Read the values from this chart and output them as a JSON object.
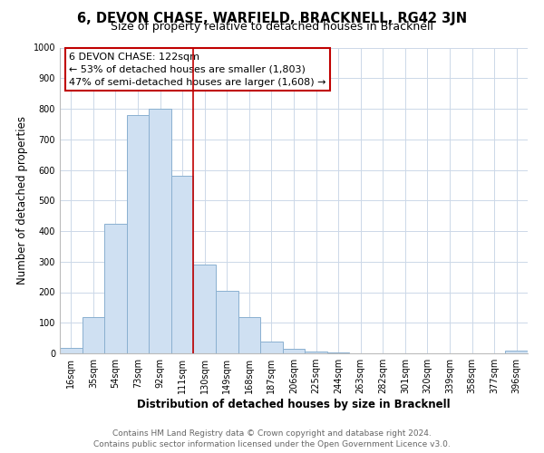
{
  "title": "6, DEVON CHASE, WARFIELD, BRACKNELL, RG42 3JN",
  "subtitle": "Size of property relative to detached houses in Bracknell",
  "xlabel": "Distribution of detached houses by size in Bracknell",
  "ylabel": "Number of detached properties",
  "bar_labels": [
    "16sqm",
    "35sqm",
    "54sqm",
    "73sqm",
    "92sqm",
    "111sqm",
    "130sqm",
    "149sqm",
    "168sqm",
    "187sqm",
    "206sqm",
    "225sqm",
    "244sqm",
    "263sqm",
    "282sqm",
    "301sqm",
    "320sqm",
    "339sqm",
    "358sqm",
    "377sqm",
    "396sqm"
  ],
  "bar_values": [
    18,
    120,
    425,
    780,
    800,
    580,
    290,
    205,
    120,
    40,
    15,
    5,
    2,
    1,
    1,
    0,
    0,
    0,
    0,
    0,
    8
  ],
  "bar_color": "#cfe0f2",
  "bar_edge_color": "#8ab0d0",
  "highlight_bar_index": 5,
  "vline_color": "#c00000",
  "annotation_title": "6 DEVON CHASE: 122sqm",
  "annotation_line1": "← 53% of detached houses are smaller (1,803)",
  "annotation_line2": "47% of semi-detached houses are larger (1,608) →",
  "annotation_box_color": "#ffffff",
  "annotation_box_edge_color": "#c00000",
  "ylim": [
    0,
    1000
  ],
  "yticks": [
    0,
    100,
    200,
    300,
    400,
    500,
    600,
    700,
    800,
    900,
    1000
  ],
  "footer_line1": "Contains HM Land Registry data © Crown copyright and database right 2024.",
  "footer_line2": "Contains public sector information licensed under the Open Government Licence v3.0.",
  "bg_color": "#ffffff",
  "grid_color": "#ccd8e8",
  "title_fontsize": 10.5,
  "subtitle_fontsize": 9,
  "axis_label_fontsize": 8.5,
  "tick_fontsize": 7,
  "annotation_fontsize": 8,
  "footer_fontsize": 6.5
}
